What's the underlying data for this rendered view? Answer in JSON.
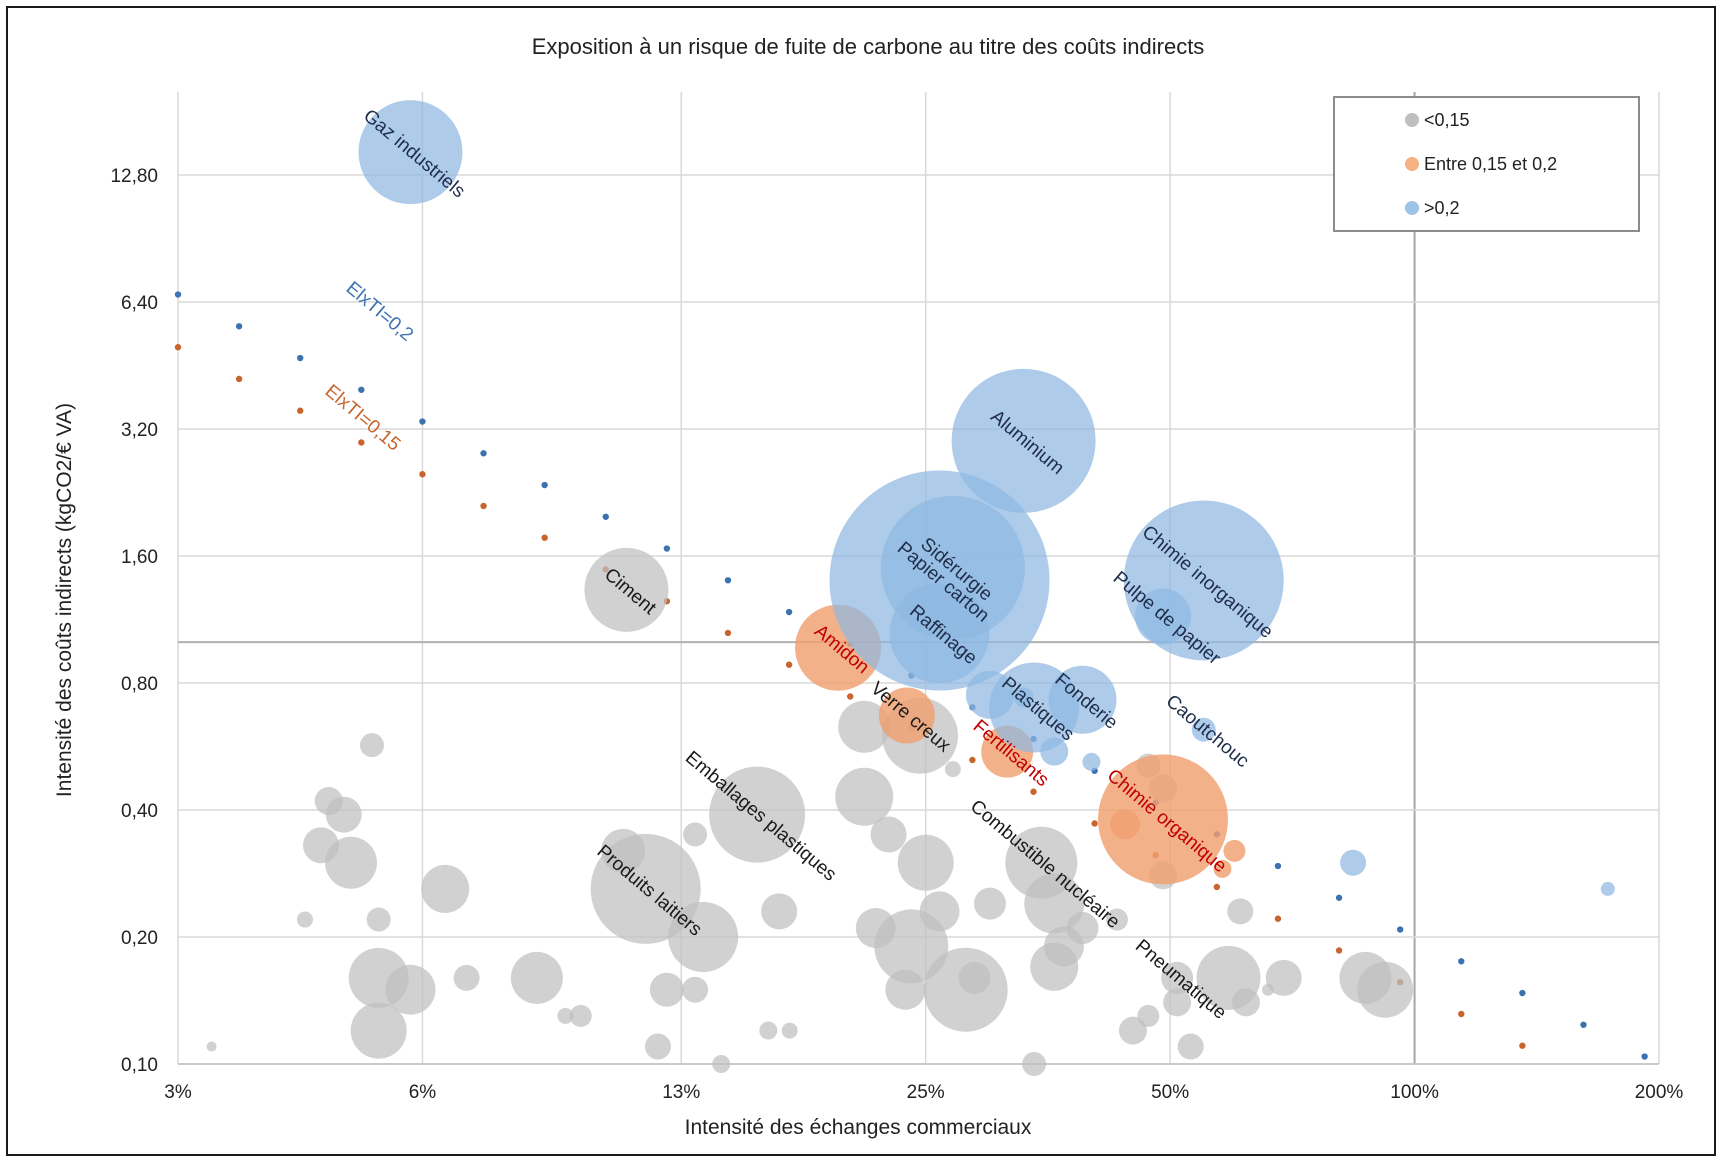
{
  "chart_data": {
    "type": "scatter",
    "title": "Exposition à un risque de fuite de carbone au titre des coûts indirects",
    "xlabel": "Intensité des échanges commerciaux",
    "ylabel": "Intensité des coûts indirects (kgCO2/€ VA)",
    "x_scale": "log2",
    "y_scale": "log2",
    "xlim": [
      0.03,
      2.0
    ],
    "ylim": [
      0.1,
      20
    ],
    "x_tick_labels": [
      "3%",
      "6%",
      "13%",
      "25%",
      "50%",
      "100%",
      "200%"
    ],
    "y_tick_labels": [
      "0,10",
      "0,20",
      "0,40",
      "0,80",
      "1,60",
      "3,20",
      "6,40",
      "12,80"
    ],
    "grid": true,
    "legend_position": "top-right",
    "legend": [
      {
        "label": "<0,15",
        "color": "#bfbfbf"
      },
      {
        "label": "Entre 0,15 et 0,2",
        "color": "#f4b183"
      },
      {
        "label": ">0,2",
        "color": "#9dc3e6"
      }
    ],
    "colors": {
      "grey": "#bfbfbf",
      "orange": "#f0a070",
      "blue": "#8fb8e2",
      "blue_line": "#3d72b0",
      "orange_line": "#c8642e",
      "red_label": "#c00000",
      "dark_label": "#1f2d4a"
    },
    "reference_lines": [
      {
        "name": "ElxTI=0,2",
        "label": "ElxTI=0,2",
        "color": "#3d72b0",
        "product": 0.2
      },
      {
        "name": "ElxTI=0,15",
        "label": "ElxTI=0,15",
        "color": "#c8642e",
        "product": 0.15
      }
    ],
    "series": [
      {
        "name": ">0,2",
        "color": "#8fb8e2",
        "points": [
          {
            "x": 0.058,
            "y": 14.5,
            "size": 52,
            "label": "Gaz industriels"
          },
          {
            "x": 0.33,
            "y": 3.0,
            "size": 72,
            "label": "Aluminium"
          },
          {
            "x": 0.26,
            "y": 1.4,
            "size": 110,
            "label": "Papier carton"
          },
          {
            "x": 0.27,
            "y": 1.5,
            "size": 72,
            "label": "Sidérurgie"
          },
          {
            "x": 0.55,
            "y": 1.4,
            "size": 80,
            "label": "Chimie inorganique"
          },
          {
            "x": 0.49,
            "y": 1.15,
            "size": 28,
            "label": "Pulpe de papier"
          },
          {
            "x": 0.26,
            "y": 1.05,
            "size": 50,
            "label": "Raffinage"
          },
          {
            "x": 0.34,
            "y": 0.7,
            "size": 45,
            "label": "Plastiques"
          },
          {
            "x": 0.39,
            "y": 0.73,
            "size": 34,
            "label": "Fonderie"
          },
          {
            "x": 0.55,
            "y": 0.62,
            "size": 12,
            "label": "Caoutchouc"
          },
          {
            "x": 0.3,
            "y": 0.75,
            "size": 24,
            "label": ""
          },
          {
            "x": 0.36,
            "y": 0.55,
            "size": 14,
            "label": ""
          },
          {
            "x": 0.4,
            "y": 0.52,
            "size": 9,
            "label": ""
          },
          {
            "x": 0.84,
            "y": 0.3,
            "size": 13,
            "label": ""
          },
          {
            "x": 1.73,
            "y": 0.26,
            "size": 7,
            "label": ""
          },
          {
            "x": 0.33,
            "y": 0.74,
            "size": 10,
            "label": ""
          }
        ]
      },
      {
        "name": "Entre 0,15 et 0,2",
        "color": "#f0a070",
        "points": [
          {
            "x": 0.195,
            "y": 0.97,
            "size": 43,
            "label": "Amidon"
          },
          {
            "x": 0.237,
            "y": 0.67,
            "size": 28,
            "label": "Verre creux"
          },
          {
            "x": 0.315,
            "y": 0.55,
            "size": 26,
            "label": "Fertilisants"
          },
          {
            "x": 0.49,
            "y": 0.38,
            "size": 65,
            "label": "Chimie organique"
          },
          {
            "x": 0.44,
            "y": 0.37,
            "size": 15,
            "label": ""
          },
          {
            "x": 0.6,
            "y": 0.32,
            "size": 11,
            "label": ""
          },
          {
            "x": 0.58,
            "y": 0.29,
            "size": 9,
            "label": ""
          }
        ]
      },
      {
        "name": "<0,15",
        "color": "#bfbfbf",
        "points": [
          {
            "x": 0.107,
            "y": 1.33,
            "size": 42,
            "label": "Ciment"
          },
          {
            "x": 0.155,
            "y": 0.39,
            "size": 48,
            "label": "Emballages plastiques"
          },
          {
            "x": 0.113,
            "y": 0.26,
            "size": 55,
            "label": "Produits laitiers"
          },
          {
            "x": 0.347,
            "y": 0.3,
            "size": 36,
            "label": "Combustible nucléaire"
          },
          {
            "x": 0.51,
            "y": 0.16,
            "size": 16,
            "label": "Pneumatique"
          },
          {
            "x": 0.246,
            "y": 0.6,
            "size": 38,
            "label": ""
          },
          {
            "x": 0.21,
            "y": 0.63,
            "size": 26,
            "label": ""
          },
          {
            "x": 0.21,
            "y": 0.43,
            "size": 29,
            "label": ""
          },
          {
            "x": 0.25,
            "y": 0.3,
            "size": 28,
            "label": ""
          },
          {
            "x": 0.24,
            "y": 0.19,
            "size": 37,
            "label": ""
          },
          {
            "x": 0.28,
            "y": 0.15,
            "size": 42,
            "label": ""
          },
          {
            "x": 0.133,
            "y": 0.2,
            "size": 35,
            "label": ""
          },
          {
            "x": 0.064,
            "y": 0.26,
            "size": 24,
            "label": ""
          },
          {
            "x": 0.049,
            "y": 0.3,
            "size": 26,
            "label": ""
          },
          {
            "x": 0.053,
            "y": 0.16,
            "size": 30,
            "label": ""
          },
          {
            "x": 0.053,
            "y": 0.12,
            "size": 28,
            "label": ""
          },
          {
            "x": 0.058,
            "y": 0.15,
            "size": 25,
            "label": ""
          },
          {
            "x": 0.083,
            "y": 0.16,
            "size": 26,
            "label": ""
          },
          {
            "x": 0.106,
            "y": 0.32,
            "size": 22,
            "label": ""
          },
          {
            "x": 0.36,
            "y": 0.17,
            "size": 24,
            "label": ""
          },
          {
            "x": 0.36,
            "y": 0.24,
            "size": 30,
            "label": ""
          },
          {
            "x": 0.59,
            "y": 0.16,
            "size": 32,
            "label": ""
          },
          {
            "x": 0.87,
            "y": 0.16,
            "size": 26,
            "label": ""
          },
          {
            "x": 0.045,
            "y": 0.33,
            "size": 18,
            "label": ""
          },
          {
            "x": 0.048,
            "y": 0.39,
            "size": 18,
            "label": ""
          },
          {
            "x": 0.046,
            "y": 0.42,
            "size": 14,
            "label": ""
          },
          {
            "x": 0.052,
            "y": 0.57,
            "size": 12,
            "label": ""
          },
          {
            "x": 0.053,
            "y": 0.22,
            "size": 12,
            "label": ""
          },
          {
            "x": 0.068,
            "y": 0.16,
            "size": 13,
            "label": ""
          },
          {
            "x": 0.094,
            "y": 0.13,
            "size": 11,
            "label": ""
          },
          {
            "x": 0.12,
            "y": 0.15,
            "size": 17,
            "label": ""
          },
          {
            "x": 0.13,
            "y": 0.35,
            "size": 12,
            "label": ""
          },
          {
            "x": 0.165,
            "y": 0.23,
            "size": 18,
            "label": ""
          },
          {
            "x": 0.16,
            "y": 0.12,
            "size": 9,
            "label": ""
          },
          {
            "x": 0.225,
            "y": 0.35,
            "size": 18,
            "label": ""
          },
          {
            "x": 0.217,
            "y": 0.21,
            "size": 20,
            "label": ""
          },
          {
            "x": 0.236,
            "y": 0.15,
            "size": 20,
            "label": ""
          },
          {
            "x": 0.3,
            "y": 0.24,
            "size": 16,
            "label": ""
          },
          {
            "x": 0.287,
            "y": 0.16,
            "size": 16,
            "label": ""
          },
          {
            "x": 0.26,
            "y": 0.23,
            "size": 20,
            "label": ""
          },
          {
            "x": 0.37,
            "y": 0.19,
            "size": 20,
            "label": ""
          },
          {
            "x": 0.39,
            "y": 0.21,
            "size": 16,
            "label": ""
          },
          {
            "x": 0.43,
            "y": 0.22,
            "size": 11,
            "label": ""
          },
          {
            "x": 0.45,
            "y": 0.12,
            "size": 14,
            "label": ""
          },
          {
            "x": 0.47,
            "y": 0.13,
            "size": 11,
            "label": ""
          },
          {
            "x": 0.51,
            "y": 0.14,
            "size": 14,
            "label": ""
          },
          {
            "x": 0.53,
            "y": 0.11,
            "size": 13,
            "label": ""
          },
          {
            "x": 0.49,
            "y": 0.45,
            "size": 14,
            "label": ""
          },
          {
            "x": 0.47,
            "y": 0.51,
            "size": 12,
            "label": ""
          },
          {
            "x": 0.49,
            "y": 0.28,
            "size": 14,
            "label": ""
          },
          {
            "x": 0.61,
            "y": 0.23,
            "size": 13,
            "label": ""
          },
          {
            "x": 0.62,
            "y": 0.14,
            "size": 14,
            "label": ""
          },
          {
            "x": 0.69,
            "y": 0.16,
            "size": 18,
            "label": ""
          },
          {
            "x": 0.92,
            "y": 0.15,
            "size": 28,
            "label": ""
          },
          {
            "x": 0.34,
            "y": 0.1,
            "size": 12,
            "label": ""
          },
          {
            "x": 0.043,
            "y": 0.22,
            "size": 8,
            "label": ""
          },
          {
            "x": 0.033,
            "y": 0.11,
            "size": 5,
            "label": ""
          },
          {
            "x": 0.117,
            "y": 0.11,
            "size": 13,
            "label": ""
          },
          {
            "x": 0.13,
            "y": 0.15,
            "size": 13,
            "label": ""
          },
          {
            "x": 0.09,
            "y": 0.13,
            "size": 8,
            "label": ""
          },
          {
            "x": 0.14,
            "y": 0.1,
            "size": 9,
            "label": ""
          },
          {
            "x": 0.17,
            "y": 0.12,
            "size": 8,
            "label": ""
          },
          {
            "x": 0.27,
            "y": 0.5,
            "size": 8,
            "label": ""
          },
          {
            "x": 0.66,
            "y": 0.15,
            "size": 6,
            "label": ""
          }
        ]
      }
    ]
  }
}
